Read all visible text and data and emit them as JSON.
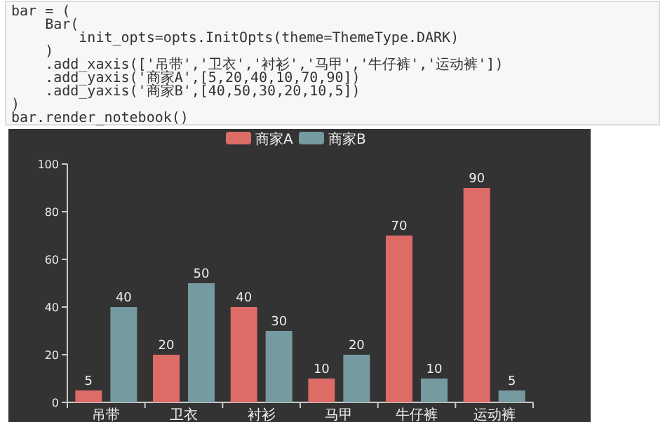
{
  "chart_data": {
    "type": "bar",
    "categories": [
      "吊带",
      "卫衣",
      "衬衫",
      "马甲",
      "牛仔裤",
      "运动裤"
    ],
    "series": [
      {
        "name": "商家A",
        "color": "#dd6b66",
        "values": [
          5,
          20,
          40,
          10,
          70,
          90
        ]
      },
      {
        "name": "商家B",
        "color": "#759aa0",
        "values": [
          40,
          50,
          30,
          20,
          10,
          5
        ]
      }
    ],
    "ylim": [
      0,
      100
    ],
    "yticks": [
      0,
      20,
      40,
      60,
      80,
      100
    ],
    "data_labels": true,
    "legend": "top",
    "grid": false,
    "annotations": [
      "bar = (",
      "    Bar(",
      "        init_opts=opts.InitOpts(theme=ThemeType.DARK)",
      "    )",
      "    .add_xaxis(['吊带','卫衣','衬衫','马甲','牛仔裤','运动裤'])",
      "    .add_yaxis('商家A',[5,20,40,10,70,90])",
      "    .add_yaxis('商家B',[40,50,30,20,10,5])",
      ")",
      "bar.render_notebook()"
    ]
  }
}
